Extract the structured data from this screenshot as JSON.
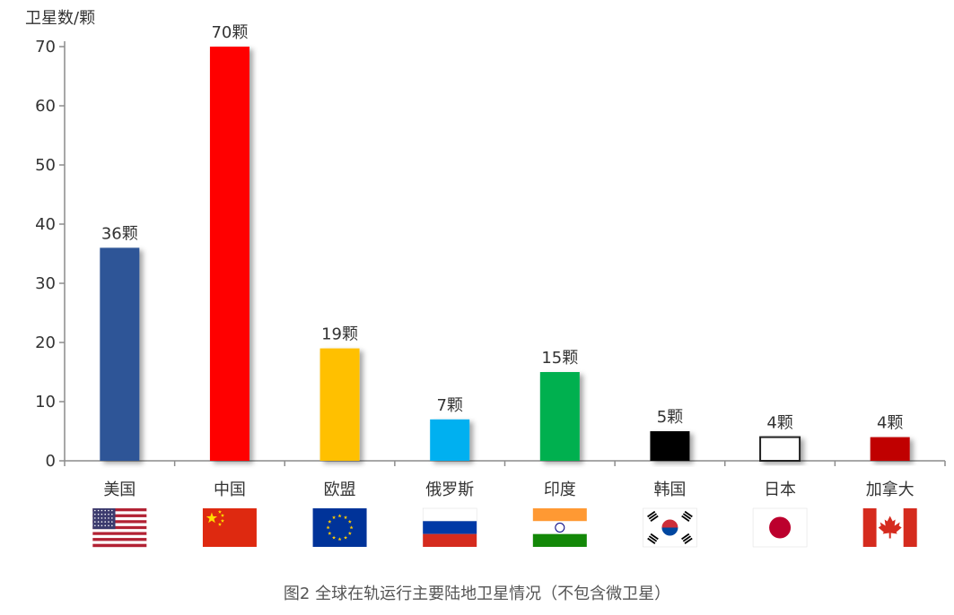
{
  "chart_data": {
    "type": "bar",
    "ylabel": "卫星数/颗",
    "ylim": [
      0,
      70
    ],
    "yticks": [
      0,
      10,
      20,
      30,
      40,
      50,
      60,
      70
    ],
    "grid": false,
    "categories": [
      "美国",
      "中国",
      "欧盟",
      "俄罗斯",
      "印度",
      "韩国",
      "日本",
      "加拿大"
    ],
    "values": [
      36,
      70,
      19,
      7,
      15,
      5,
      4,
      4
    ],
    "data_labels": [
      "36颗",
      "70颗",
      "19颗",
      "7颗",
      "15颗",
      "5颗",
      "4颗",
      "4颗"
    ],
    "bar_colors": [
      "#2f5597",
      "#ff0000",
      "#ffc000",
      "#00b0f0",
      "#00b050",
      "#000000",
      "#ffffff",
      "#c00000"
    ],
    "flags": [
      "us-flag-icon",
      "china-flag-icon",
      "eu-flag-icon",
      "russia-flag-icon",
      "india-flag-icon",
      "korea-flag-icon",
      "japan-flag-icon",
      "canada-flag-icon"
    ]
  },
  "caption": "图2 全球在轨运行主要陆地卫星情况（不包含微卫星）"
}
